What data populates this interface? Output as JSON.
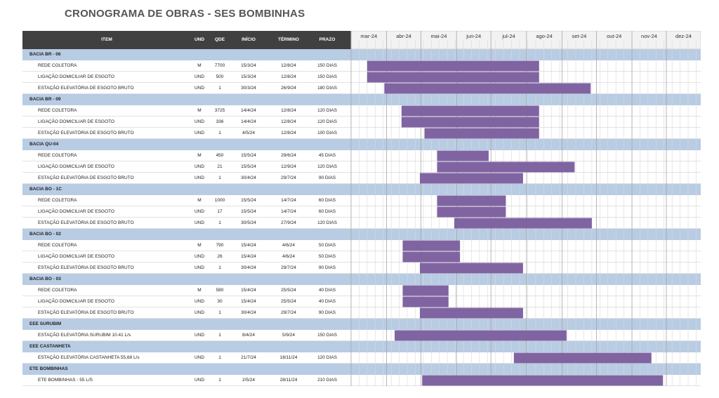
{
  "title": "CRONOGRAMA DE OBRAS - SES BOMBINHAS",
  "headers": {
    "item": "ITEM",
    "und": "UND",
    "qde": "QDE",
    "inicio": "INÍCIO",
    "termino": "TÉRMINO",
    "prazo": "PRAZO"
  },
  "months": [
    "mar-24",
    "abr-24",
    "mai-24",
    "jun-24",
    "jul-24",
    "ago-24",
    "set-24",
    "out-24",
    "nov-24",
    "dez-24"
  ],
  "colors": {
    "bar": "#8064a2",
    "group": "#b8cce4",
    "header": "#404040"
  },
  "chart_data": {
    "type": "gantt",
    "title": "CRONOGRAMA DE OBRAS - SES BOMBINHAS",
    "x_range": [
      "2024-03-01",
      "2024-12-31"
    ],
    "groups": [
      {
        "name": "BACIA BR - 06",
        "tasks": [
          {
            "item": "REDE COLETORA",
            "und": "M",
            "qde": "7700",
            "inicio": "15/3/24",
            "termino": "12/8/24",
            "prazo": "150 DIAS",
            "start": "2024-03-15",
            "end": "2024-08-12"
          },
          {
            "item": "LIGAÇÃO DOMICILIAR DE ESGOTO",
            "und": "UND",
            "qde": "500",
            "inicio": "15/3/24",
            "termino": "12/8/24",
            "prazo": "150 DIAS",
            "start": "2024-03-15",
            "end": "2024-08-12"
          },
          {
            "item": "ESTAÇÃO ELEVATÓRIA DE ESGOTO BRUTO",
            "und": "UND",
            "qde": "1",
            "inicio": "30/3/24",
            "termino": "26/9/24",
            "prazo": "180 DIAS",
            "start": "2024-03-30",
            "end": "2024-09-26"
          }
        ]
      },
      {
        "name": "BACIA BR - 09",
        "tasks": [
          {
            "item": "REDE COLETORA",
            "und": "M",
            "qde": "3725",
            "inicio": "14/4/24",
            "termino": "12/8/24",
            "prazo": "120 DIAS",
            "start": "2024-04-14",
            "end": "2024-08-12"
          },
          {
            "item": "LIGAÇÃO DOMICILIAR DE ESGOTO",
            "und": "UND",
            "qde": "336",
            "inicio": "14/4/24",
            "termino": "12/8/24",
            "prazo": "120 DIAS",
            "start": "2024-04-14",
            "end": "2024-08-12"
          },
          {
            "item": "ESTAÇÃO ELEVATÓRIA DE ESGOTO BRUTO",
            "und": "UND",
            "qde": "1",
            "inicio": "4/5/24",
            "termino": "12/8/24",
            "prazo": "100 DIAS",
            "start": "2024-05-04",
            "end": "2024-08-12"
          }
        ]
      },
      {
        "name": "BACIA QU-04",
        "tasks": [
          {
            "item": "REDE COLETORA",
            "und": "M",
            "qde": "450",
            "inicio": "15/5/24",
            "termino": "29/6/24",
            "prazo": "45 DIAS",
            "start": "2024-05-15",
            "end": "2024-06-29"
          },
          {
            "item": "LIGAÇÃO DOMICILIAR DE ESGOTO",
            "und": "UND",
            "qde": "21",
            "inicio": "15/5/24",
            "termino": "12/9/24",
            "prazo": "120 DIAS",
            "start": "2024-05-15",
            "end": "2024-09-12"
          },
          {
            "item": "ESTAÇÃO ELEVATÓRIA DE ESGOTO BRUTO",
            "und": "UND",
            "qde": "1",
            "inicio": "30/4/24",
            "termino": "29/7/24",
            "prazo": "90 DIAS",
            "start": "2024-04-30",
            "end": "2024-07-29"
          }
        ]
      },
      {
        "name": "BACIA BO - 1C",
        "tasks": [
          {
            "item": "REDE COLETORA",
            "und": "M",
            "qde": "1000",
            "inicio": "15/5/24",
            "termino": "14/7/24",
            "prazo": "60 DIAS",
            "start": "2024-05-15",
            "end": "2024-07-14"
          },
          {
            "item": "LIGAÇÃO DOMICILIAR DE ESGOTO",
            "und": "UND",
            "qde": "17",
            "inicio": "15/5/24",
            "termino": "14/7/24",
            "prazo": "60 DIAS",
            "start": "2024-05-15",
            "end": "2024-07-14"
          },
          {
            "item": "ESTAÇÃO ELEVATÓRIA DE ESGOTO BRUTO",
            "und": "UND",
            "qde": "1",
            "inicio": "30/5/24",
            "termino": "27/9/24",
            "prazo": "120 DIAS",
            "start": "2024-05-30",
            "end": "2024-09-27"
          }
        ]
      },
      {
        "name": "BACIA BO - 02",
        "tasks": [
          {
            "item": "REDE COLETORA",
            "und": "M",
            "qde": "790",
            "inicio": "15/4/24",
            "termino": "4/6/24",
            "prazo": "50 DIAS",
            "start": "2024-04-15",
            "end": "2024-06-04"
          },
          {
            "item": "LIGAÇÃO DOMICILIAR DE ESGOTO",
            "und": "UND",
            "qde": "26",
            "inicio": "15/4/24",
            "termino": "4/6/24",
            "prazo": "50 DIAS",
            "start": "2024-04-15",
            "end": "2024-06-04"
          },
          {
            "item": "ESTAÇÃO ELEVATÓRIA DE ESGOTO BRUTO",
            "und": "UND",
            "qde": "1",
            "inicio": "30/4/24",
            "termino": "29/7/24",
            "prazo": "90 DIAS",
            "start": "2024-04-30",
            "end": "2024-07-29"
          }
        ]
      },
      {
        "name": "BACIA BO - 03",
        "tasks": [
          {
            "item": "REDE COLETORA",
            "und": "M",
            "qde": "580",
            "inicio": "15/4/24",
            "termino": "25/5/24",
            "prazo": "40 DIAS",
            "start": "2024-04-15",
            "end": "2024-05-25"
          },
          {
            "item": "LIGAÇÃO DOMICILIAR DE ESGOTO",
            "und": "UND",
            "qde": "30",
            "inicio": "15/4/24",
            "termino": "25/5/24",
            "prazo": "40 DIAS",
            "start": "2024-04-15",
            "end": "2024-05-25"
          },
          {
            "item": "ESTAÇÃO ELEVATÓRIA DE ESGOTO BRUTO",
            "und": "UND",
            "qde": "1",
            "inicio": "30/4/24",
            "termino": "29/7/24",
            "prazo": "90 DIAS",
            "start": "2024-04-30",
            "end": "2024-07-29"
          }
        ]
      },
      {
        "name": "EEE SURUBIM",
        "tasks": [
          {
            "item": "ESTAÇÃO ELEVATÓRIA SURUBIM 10.41 L/s",
            "und": "UND",
            "qde": "1",
            "inicio": "8/4/24",
            "termino": "5/9/24",
            "prazo": "150 DIAS",
            "start": "2024-04-08",
            "end": "2024-09-05"
          }
        ]
      },
      {
        "name": "EEE CASTANHETA",
        "tasks": [
          {
            "item": "ESTAÇÃO ELEVATÓRIA CASTANHETA 55,68 L/s",
            "und": "UND",
            "qde": "1",
            "inicio": "21/7/24",
            "termino": "18/11/24",
            "prazo": "120 DIAS",
            "start": "2024-07-21",
            "end": "2024-11-18"
          }
        ]
      },
      {
        "name": "ETE BOMBINHAS",
        "tasks": [
          {
            "item": "ETE BOMBINHAS - 55 L/S",
            "und": "UND",
            "qde": "1",
            "inicio": "2/5/24",
            "termino": "28/11/24",
            "prazo": "210 DIAS",
            "start": "2024-05-02",
            "end": "2024-11-28"
          }
        ]
      }
    ]
  }
}
